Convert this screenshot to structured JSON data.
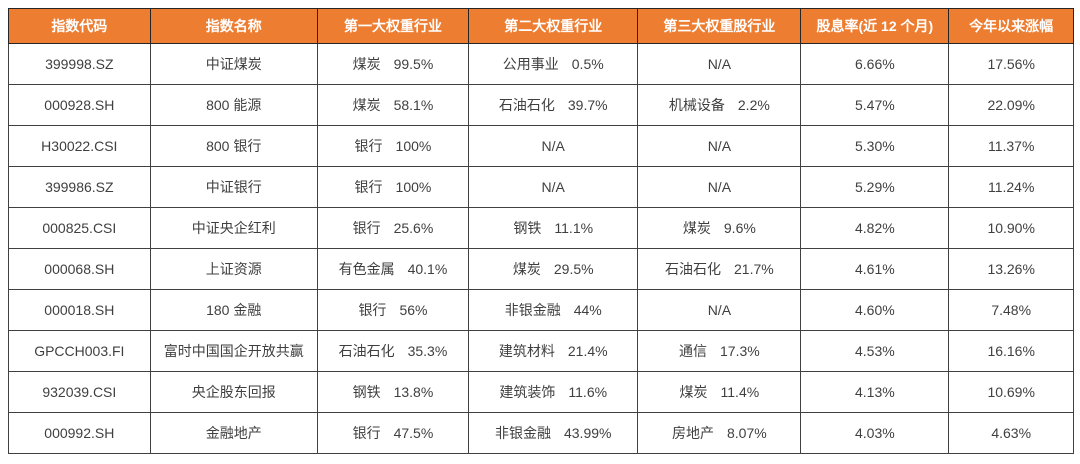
{
  "colors": {
    "header_bg": "#ED7D31",
    "header_text": "#FFFFFF",
    "body_text": "#3F3F3F",
    "border": "#404040"
  },
  "table": {
    "columns": [
      {
        "label": "指数代码"
      },
      {
        "label": "指数名称"
      },
      {
        "label": "第一大权重行业"
      },
      {
        "label": "第二大权重行业"
      },
      {
        "label": "第三大权重股行业"
      },
      {
        "label": "股息率(近 12 个月)"
      },
      {
        "label": "今年以来涨幅"
      }
    ],
    "rows": [
      {
        "code": "399998.SZ",
        "name": "中证煤炭",
        "ind1": {
          "sector": "煤炭",
          "weight": "99.5%"
        },
        "ind2": {
          "sector": "公用事业",
          "weight": "0.5%"
        },
        "ind3": {
          "sector": "N/A",
          "weight": null
        },
        "dividend_yield": "6.66%",
        "ytd_change": "17.56%"
      },
      {
        "code": "000928.SH",
        "name": "800 能源",
        "ind1": {
          "sector": "煤炭",
          "weight": "58.1%"
        },
        "ind2": {
          "sector": "石油石化",
          "weight": "39.7%"
        },
        "ind3": {
          "sector": "机械设备",
          "weight": "2.2%"
        },
        "dividend_yield": "5.47%",
        "ytd_change": "22.09%"
      },
      {
        "code": "H30022.CSI",
        "name": "800 银行",
        "ind1": {
          "sector": "银行",
          "weight": "100%"
        },
        "ind2": {
          "sector": "N/A",
          "weight": null
        },
        "ind3": {
          "sector": "N/A",
          "weight": null
        },
        "dividend_yield": "5.30%",
        "ytd_change": "11.37%"
      },
      {
        "code": "399986.SZ",
        "name": "中证银行",
        "ind1": {
          "sector": "银行",
          "weight": "100%"
        },
        "ind2": {
          "sector": "N/A",
          "weight": null
        },
        "ind3": {
          "sector": "N/A",
          "weight": null
        },
        "dividend_yield": "5.29%",
        "ytd_change": "11.24%"
      },
      {
        "code": "000825.CSI",
        "name": "中证央企红利",
        "ind1": {
          "sector": "银行",
          "weight": "25.6%"
        },
        "ind2": {
          "sector": "钢铁",
          "weight": "11.1%"
        },
        "ind3": {
          "sector": "煤炭",
          "weight": "9.6%"
        },
        "dividend_yield": "4.82%",
        "ytd_change": "10.90%"
      },
      {
        "code": "000068.SH",
        "name": "上证资源",
        "ind1": {
          "sector": "有色金属",
          "weight": "40.1%"
        },
        "ind2": {
          "sector": "煤炭",
          "weight": "29.5%"
        },
        "ind3": {
          "sector": "石油石化",
          "weight": "21.7%"
        },
        "dividend_yield": "4.61%",
        "ytd_change": "13.26%"
      },
      {
        "code": "000018.SH",
        "name": "180 金融",
        "ind1": {
          "sector": "银行",
          "weight": "56%"
        },
        "ind2": {
          "sector": "非银金融",
          "weight": "44%"
        },
        "ind3": {
          "sector": "N/A",
          "weight": null
        },
        "dividend_yield": "4.60%",
        "ytd_change": "7.48%"
      },
      {
        "code": "GPCCH003.FI",
        "name": "富时中国国企开放共赢",
        "ind1": {
          "sector": "石油石化",
          "weight": "35.3%"
        },
        "ind2": {
          "sector": "建筑材料",
          "weight": "21.4%"
        },
        "ind3": {
          "sector": "通信",
          "weight": "17.3%"
        },
        "dividend_yield": "4.53%",
        "ytd_change": "16.16%"
      },
      {
        "code": "932039.CSI",
        "name": "央企股东回报",
        "ind1": {
          "sector": "钢铁",
          "weight": "13.8%"
        },
        "ind2": {
          "sector": "建筑装饰",
          "weight": "11.6%"
        },
        "ind3": {
          "sector": "煤炭",
          "weight": "11.4%"
        },
        "dividend_yield": "4.13%",
        "ytd_change": "10.69%"
      },
      {
        "code": "000992.SH",
        "name": "金融地产",
        "ind1": {
          "sector": "银行",
          "weight": "47.5%"
        },
        "ind2": {
          "sector": "非银金融",
          "weight": "43.99%"
        },
        "ind3": {
          "sector": "房地产",
          "weight": "8.07%"
        },
        "dividend_yield": "4.03%",
        "ytd_change": "4.63%"
      }
    ]
  }
}
